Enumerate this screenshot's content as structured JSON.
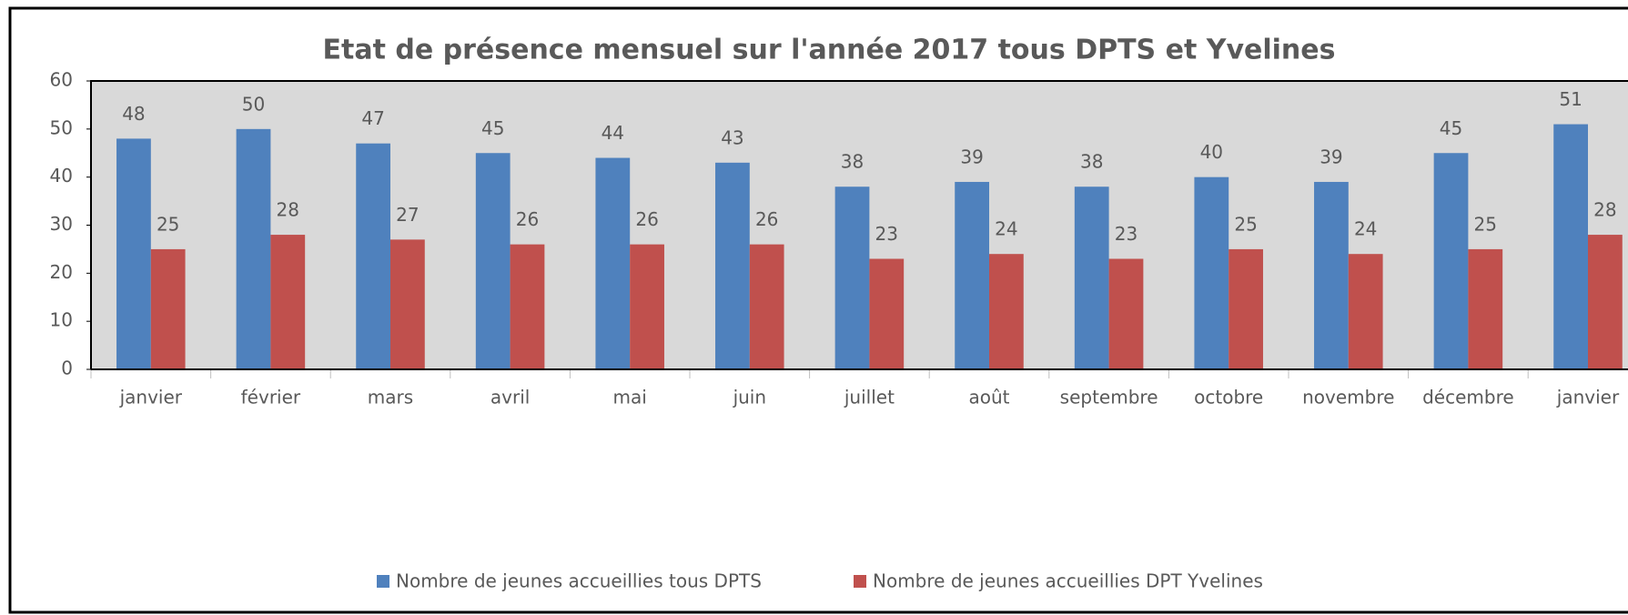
{
  "chart_data": {
    "type": "bar",
    "title": "Etat de présence mensuel sur l'année 2017 tous DPTS et Yvelines",
    "categories": [
      "janvier",
      "février",
      "mars",
      "avril",
      "mai",
      "juin",
      "juillet",
      "août",
      "septembre",
      "octobre",
      "novembre",
      "décembre",
      "janvier"
    ],
    "series": [
      {
        "name": "Nombre de jeunes accueillies tous DPTS",
        "color": "#4f81bd",
        "values": [
          48,
          50,
          47,
          45,
          44,
          43,
          38,
          39,
          38,
          40,
          39,
          45,
          51
        ]
      },
      {
        "name": "Nombre de jeunes accueillies DPT Yvelines",
        "color": "#c0504d",
        "values": [
          25,
          28,
          27,
          26,
          26,
          26,
          23,
          24,
          23,
          25,
          24,
          25,
          28
        ]
      }
    ],
    "ylim": [
      0,
      60
    ],
    "yticks": [
      0,
      10,
      20,
      30,
      40,
      50,
      60
    ],
    "legend": "bottom"
  }
}
